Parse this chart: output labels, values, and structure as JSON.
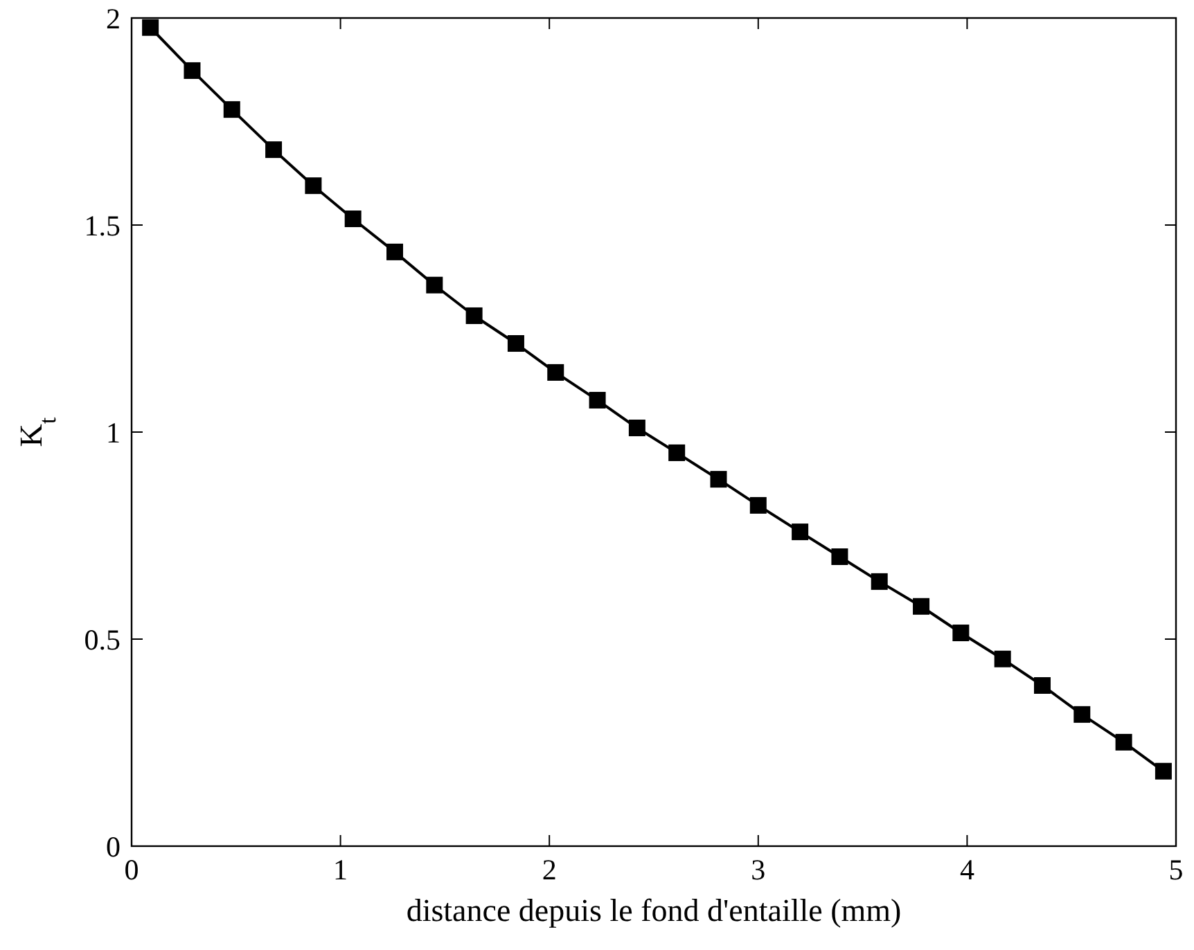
{
  "chart_data": {
    "type": "line",
    "xlabel": "distance depuis le fond d'entaille (mm)",
    "ylabel": "K$_{t}$",
    "xlim": [
      0,
      5
    ],
    "ylim": [
      0,
      2
    ],
    "xticks": [
      0,
      1,
      2,
      3,
      4,
      5
    ],
    "yticks": [
      0,
      0.5,
      1,
      1.5,
      2
    ],
    "grid": false,
    "marker": "square",
    "line_style": "solid",
    "series": [
      {
        "color": "#000000",
        "x": [
          0.09,
          0.29,
          0.48,
          0.68,
          0.87,
          1.06,
          1.26,
          1.45,
          1.64,
          1.84,
          2.03,
          2.23,
          2.42,
          2.61,
          2.81,
          3.0,
          3.2,
          3.39,
          3.58,
          3.78,
          3.97,
          4.17,
          4.36,
          4.55,
          4.75,
          4.94
        ],
        "values": [
          1.977,
          1.873,
          1.779,
          1.682,
          1.595,
          1.515,
          1.435,
          1.355,
          1.281,
          1.214,
          1.144,
          1.077,
          1.01,
          0.95,
          0.886,
          0.823,
          0.759,
          0.699,
          0.639,
          0.579,
          0.515,
          0.452,
          0.388,
          0.318,
          0.251,
          0.181
        ]
      }
    ]
  }
}
